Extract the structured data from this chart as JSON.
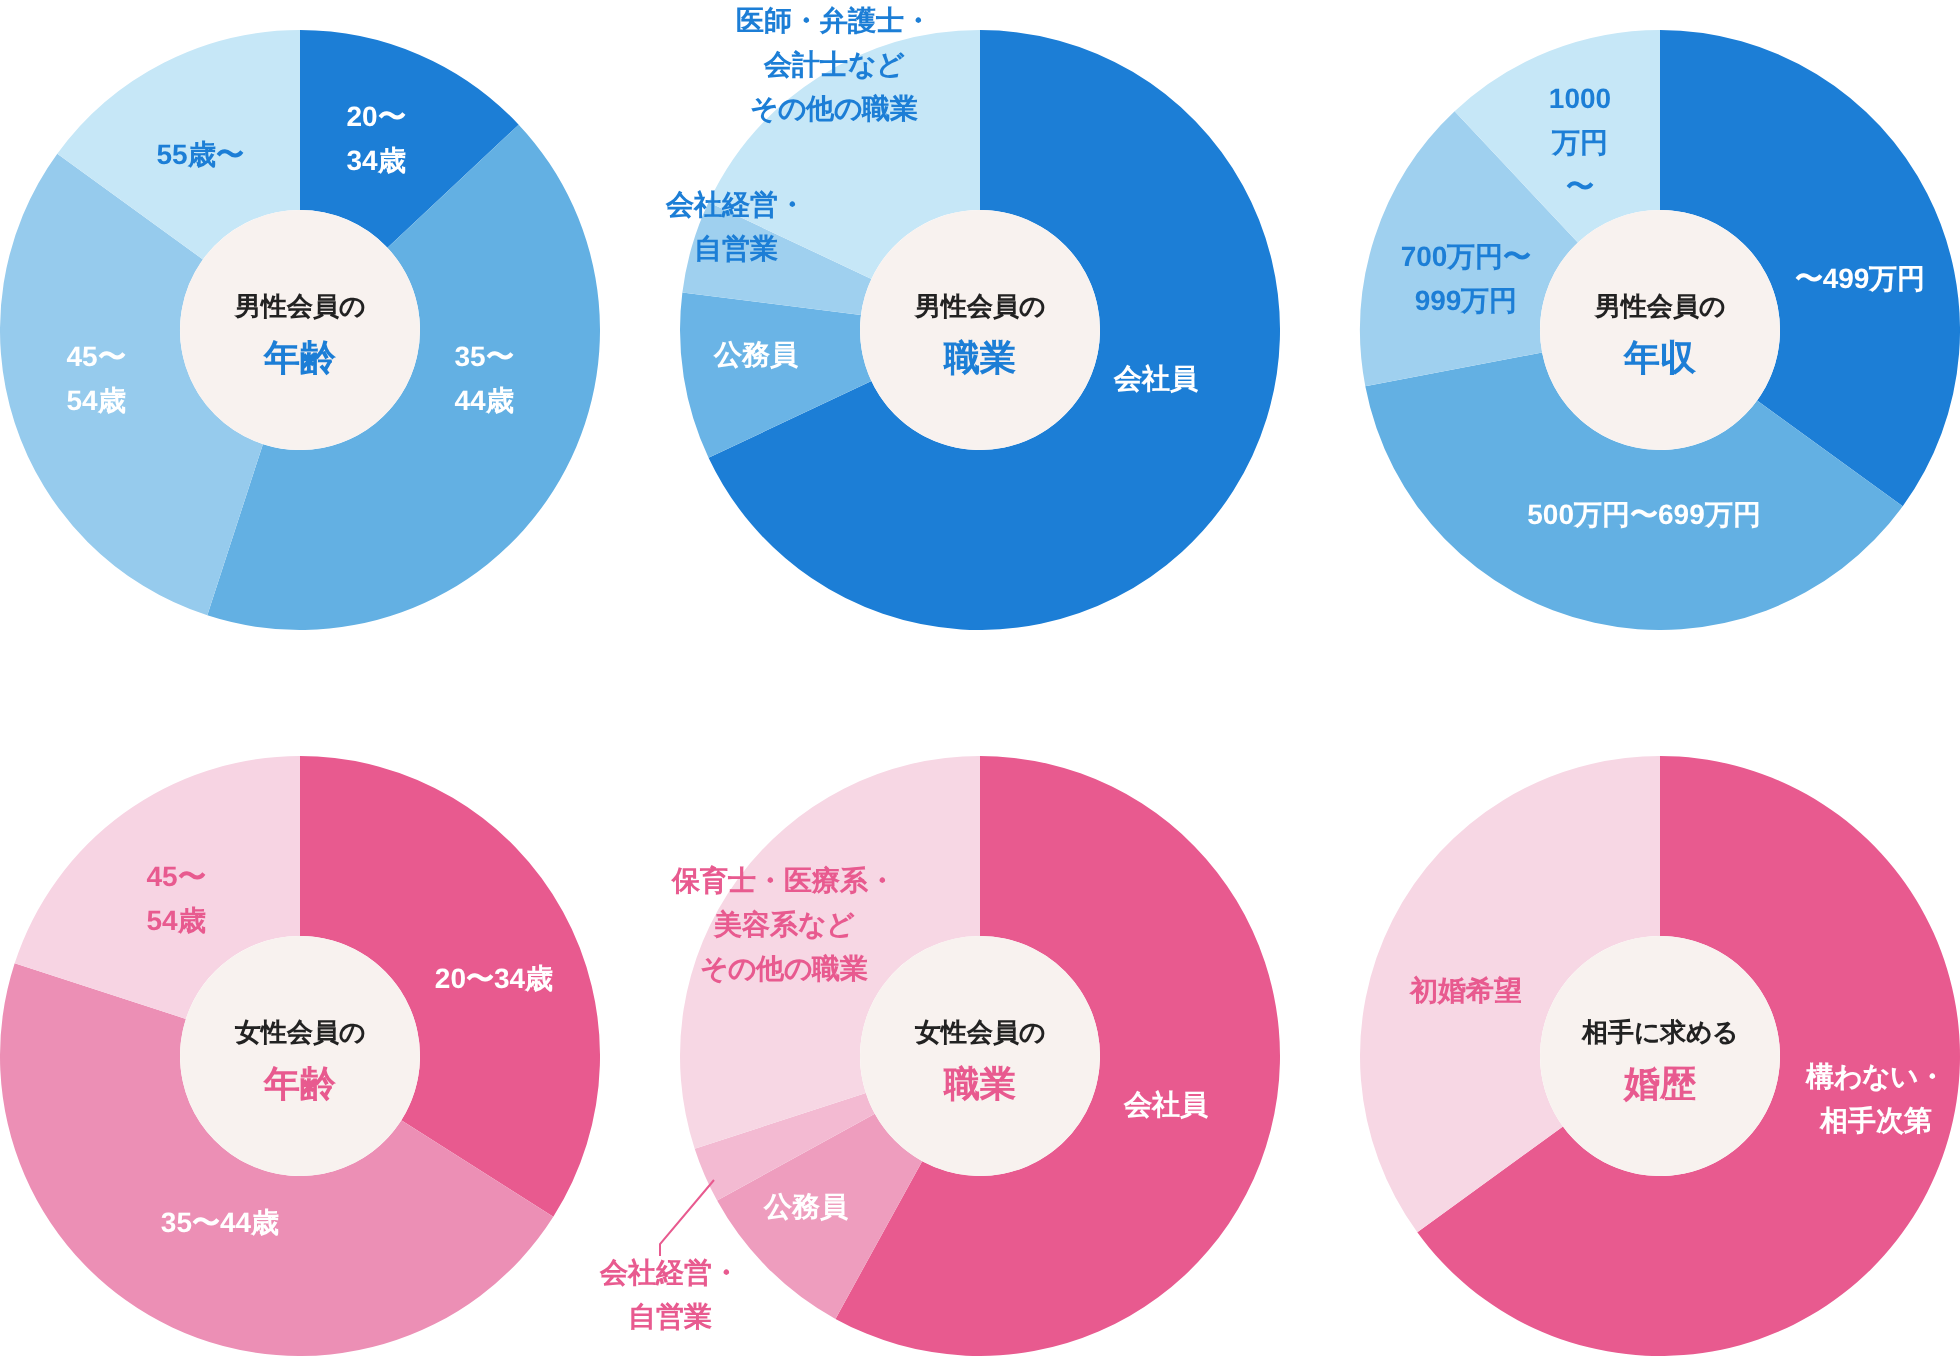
{
  "chart_data": [
    {
      "type": "donut",
      "title": "男性会員の",
      "subtitle": "年齢",
      "categories": [
        "20〜34歳",
        "35〜44歳",
        "45〜54歳",
        "55歳〜"
      ],
      "values": [
        13,
        42,
        30,
        15
      ],
      "colors": [
        "#1c7ed6",
        "#63b0e3",
        "#96cbed",
        "#c6e7f7"
      ]
    },
    {
      "type": "donut",
      "title": "男性会員の",
      "subtitle": "職業",
      "categories": [
        "会社員",
        "公務員",
        "会社経営・自営業",
        "医師・弁護士・会計士などその他の職業"
      ],
      "values": [
        68,
        9,
        5,
        18
      ],
      "colors": [
        "#1c7ed6",
        "#6ab4e6",
        "#9fd0ef",
        "#c6e7f7"
      ]
    },
    {
      "type": "donut",
      "title": "男性会員の",
      "subtitle": "年収",
      "categories": [
        "〜499万円",
        "500万円〜699万円",
        "700万円〜999万円",
        "1000万円〜"
      ],
      "values": [
        35,
        37,
        16,
        12
      ],
      "colors": [
        "#1c7ed6",
        "#63b0e3",
        "#9fd0ef",
        "#c6e7f7"
      ]
    },
    {
      "type": "donut",
      "title": "女性会員の",
      "subtitle": "年齢",
      "categories": [
        "20〜34歳",
        "35〜44歳",
        "45〜54歳"
      ],
      "values": [
        34,
        46,
        20
      ],
      "colors": [
        "#e85a8f",
        "#ec8fb5",
        "#f7d4e3"
      ]
    },
    {
      "type": "donut",
      "title": "女性会員の",
      "subtitle": "職業",
      "categories": [
        "会社員",
        "公務員",
        "会社経営・自営業",
        "保育士・医療系・美容系などその他の職業"
      ],
      "values": [
        58,
        9,
        3,
        30
      ],
      "colors": [
        "#e85a8f",
        "#ee9dbe",
        "#f3bad2",
        "#f7d7e4"
      ]
    },
    {
      "type": "donut",
      "title": "相手に求める",
      "subtitle": "婚歴",
      "categories": [
        "構わない・相手次第",
        "初婚希望"
      ],
      "values": [
        65,
        35
      ],
      "colors": [
        "#e85a8f",
        "#f7d7e4"
      ]
    }
  ]
}
